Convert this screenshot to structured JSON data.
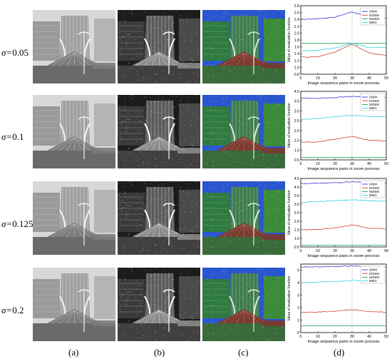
{
  "sigma_prefix": "σ=",
  "rows": [
    {
      "sigma_value": "0.05"
    },
    {
      "sigma_value": "0.1"
    },
    {
      "sigma_value": "0.125"
    },
    {
      "sigma_value": "0.2"
    }
  ],
  "captions": [
    "(a)",
    "(b)",
    "(c)",
    "(d)"
  ],
  "colors": {
    "GNMI": "#3a3ad8",
    "EGNMI": "#d04030",
    "NGNMI": "#1a9a50",
    "MIEG": "#30d0d8"
  },
  "chart_data": [
    {
      "type": "line",
      "xlabel": "Image sequence pairs in zoom process",
      "ylabel": "Value of evaluation function",
      "xlim": [
        0,
        50
      ],
      "ylim": [
        0.8,
        2.8
      ],
      "xticks": [
        "0",
        "10",
        "20",
        "30",
        "40",
        "50"
      ],
      "yticks": [
        "0.8",
        "1.0",
        "1.2",
        "1.4",
        "1.6",
        "1.8",
        "2.0",
        "2.2",
        "2.4",
        "2.6",
        "2.8"
      ],
      "legend": [
        "GNMI",
        "EGNMI",
        "NGNMI",
        "MIEG"
      ],
      "series": [
        {
          "name": "GNMI",
          "peak": 30,
          "values": [
            2.4,
            2.42,
            2.47,
            2.62,
            2.47,
            2.45
          ]
        },
        {
          "name": "EGNMI",
          "peak": 30,
          "values": [
            1.3,
            1.31,
            1.45,
            1.68,
            1.42,
            1.35
          ]
        },
        {
          "name": "NGNMI",
          "peak": 30,
          "values": [
            1.7,
            1.7,
            1.7,
            1.7,
            1.7,
            1.7
          ]
        },
        {
          "name": "MIEG",
          "peak": 30,
          "values": [
            1.48,
            1.5,
            1.57,
            1.7,
            1.58,
            1.59
          ]
        }
      ]
    },
    {
      "type": "line",
      "xlabel": "Image sequence pairs in zoom process",
      "ylabel": "Value of evaluation function",
      "xlim": [
        0,
        50
      ],
      "ylim": [
        0.5,
        4.0
      ],
      "xticks": [
        "0",
        "10",
        "20",
        "30",
        "40",
        "50"
      ],
      "yticks": [
        "0.5",
        "1.0",
        "1.5",
        "2.0",
        "2.5",
        "3.0",
        "3.5",
        "4.0"
      ],
      "legend": [
        "GNMI",
        "EGNMI",
        "NGNMI",
        "MIEG"
      ],
      "series": [
        {
          "name": "GNMI",
          "peak": 30,
          "values": [
            3.65,
            3.65,
            3.68,
            3.75,
            3.7,
            3.68
          ]
        },
        {
          "name": "EGNMI",
          "peak": 30,
          "values": [
            1.4,
            1.42,
            1.55,
            1.7,
            1.5,
            1.48
          ]
        },
        {
          "name": "NGNMI",
          "peak": 30,
          "values": [
            0.62,
            0.62,
            0.62,
            0.62,
            0.62,
            0.62
          ]
        },
        {
          "name": "MIEG",
          "peak": 30,
          "values": [
            2.55,
            2.62,
            2.7,
            2.78,
            2.72,
            2.7
          ]
        }
      ]
    },
    {
      "type": "line",
      "xlabel": "Image sequence pairs in zoom process",
      "ylabel": "Value of evaluation function",
      "xlim": [
        0,
        50
      ],
      "ylim": [
        0.5,
        4.5
      ],
      "xticks": [
        "0",
        "10",
        "20",
        "30",
        "40",
        "50"
      ],
      "yticks": [
        "0.5",
        "1.0",
        "1.5",
        "2.0",
        "2.5",
        "3.0",
        "3.5",
        "4.0",
        "4.5"
      ],
      "legend": [
        "GNMI",
        "EGNMI",
        "NGNMI",
        "MIEG"
      ],
      "series": [
        {
          "name": "GNMI",
          "peak": 30,
          "values": [
            4.2,
            4.22,
            4.25,
            4.3,
            4.25,
            4.22
          ]
        },
        {
          "name": "EGNMI",
          "peak": 30,
          "values": [
            1.5,
            1.52,
            1.62,
            1.78,
            1.6,
            1.55
          ]
        },
        {
          "name": "NGNMI",
          "peak": 30,
          "values": [
            0.6,
            0.6,
            0.6,
            0.6,
            0.6,
            0.6
          ]
        },
        {
          "name": "MIEG",
          "peak": 30,
          "values": [
            3.1,
            3.15,
            3.2,
            3.25,
            3.2,
            3.18
          ]
        }
      ]
    },
    {
      "type": "line",
      "xlabel": "Image sequence pairs in zoom process",
      "ylabel": "Value of evaluation function",
      "xlim": [
        0,
        50
      ],
      "ylim": [
        0,
        5.5
      ],
      "xticks": [
        "0",
        "10",
        "20",
        "30",
        "40",
        "50"
      ],
      "yticks": [
        "0",
        "1",
        "2",
        "3",
        "4",
        "5"
      ],
      "legend": [
        "GNMI",
        "EGNMI",
        "NGNMI",
        "MIEG"
      ],
      "series": [
        {
          "name": "GNMI",
          "peak": 30,
          "values": [
            5.25,
            5.28,
            5.3,
            5.35,
            5.3,
            5.28
          ]
        },
        {
          "name": "EGNMI",
          "peak": 30,
          "values": [
            1.62,
            1.65,
            1.72,
            1.85,
            1.7,
            1.65
          ]
        },
        {
          "name": "NGNMI",
          "peak": 30,
          "values": [
            0.55,
            0.55,
            0.55,
            0.55,
            0.55,
            0.55
          ]
        },
        {
          "name": "MIEG",
          "peak": 30,
          "values": [
            4.0,
            4.05,
            4.1,
            4.2,
            4.12,
            4.1
          ]
        }
      ]
    }
  ]
}
